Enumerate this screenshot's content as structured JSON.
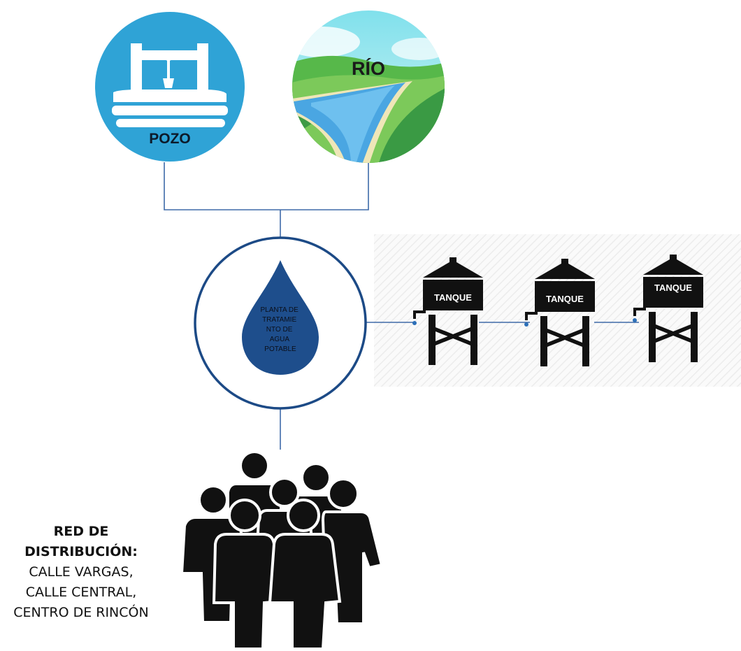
{
  "nodes": {
    "well": {
      "label": "POZO",
      "color": "#2fa3d6"
    },
    "river": {
      "label": "RÍO"
    },
    "plant": {
      "label_lines": [
        "PLANTA DE",
        "TRATAMIE",
        "NTO DE",
        "AGUA",
        "POTABLE"
      ],
      "ring_color": "#1c4a86",
      "drop_color": "#1e4e8c"
    },
    "tanks": [
      {
        "label": "TANQUE"
      },
      {
        "label": "TANQUE"
      },
      {
        "label": "TANQUE"
      }
    ],
    "distribution": {
      "heading_lines": [
        "RED DE",
        "DISTRIBUCIÓN:"
      ],
      "streets": [
        "CALLE VARGAS,",
        "CALLE CENTRAL,",
        "CENTRO DE RINCÓN"
      ]
    }
  },
  "colors": {
    "connector": "#3e6aa8",
    "silhouette": "#111111"
  }
}
